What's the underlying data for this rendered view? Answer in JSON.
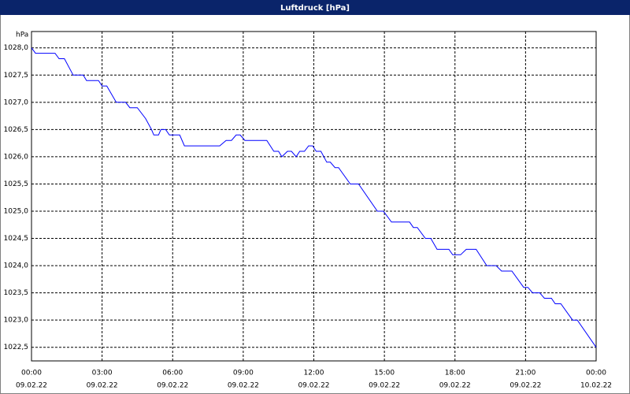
{
  "chart_data": {
    "type": "line",
    "title": "Luftdruck [hPa]",
    "y_label": "hPa",
    "x": [
      0,
      0.17,
      1.0,
      1.17,
      1.4,
      1.77,
      2.2,
      2.34,
      2.85,
      3.0,
      3.2,
      3.6,
      4.0,
      4.18,
      4.5,
      4.85,
      5.1,
      5.2,
      5.4,
      5.5,
      5.7,
      5.86,
      6.3,
      6.5,
      8.0,
      8.27,
      8.5,
      8.7,
      8.87,
      9.07,
      10.0,
      10.3,
      10.5,
      10.64,
      10.88,
      11.05,
      11.25,
      11.4,
      11.6,
      11.78,
      11.95,
      12.1,
      12.3,
      12.55,
      12.7,
      12.9,
      13.05,
      13.55,
      13.9,
      14.7,
      14.96,
      15.3,
      16.07,
      16.23,
      16.4,
      16.74,
      16.97,
      17.24,
      17.74,
      17.9,
      18.24,
      18.48,
      18.9,
      19.35,
      19.75,
      19.98,
      20.42,
      20.92,
      21.1,
      21.3,
      21.6,
      21.8,
      22.1,
      22.26,
      22.5,
      23.0,
      23.2,
      24.0
    ],
    "values": [
      1028.0,
      1027.9,
      1027.9,
      1027.8,
      1027.8,
      1027.5,
      1027.5,
      1027.4,
      1027.4,
      1027.3,
      1027.3,
      1027.0,
      1027.0,
      1026.9,
      1026.9,
      1026.7,
      1026.5,
      1026.4,
      1026.4,
      1026.5,
      1026.5,
      1026.4,
      1026.4,
      1026.2,
      1026.2,
      1026.3,
      1026.3,
      1026.4,
      1026.4,
      1026.3,
      1026.3,
      1026.1,
      1026.1,
      1026.0,
      1026.1,
      1026.1,
      1026.0,
      1026.1,
      1026.1,
      1026.2,
      1026.2,
      1026.1,
      1026.1,
      1025.9,
      1025.9,
      1025.8,
      1025.8,
      1025.5,
      1025.5,
      1025.0,
      1025.0,
      1024.8,
      1024.8,
      1024.7,
      1024.7,
      1024.5,
      1024.5,
      1024.3,
      1024.3,
      1024.2,
      1024.2,
      1024.3,
      1024.3,
      1024.0,
      1024.0,
      1023.9,
      1023.9,
      1023.6,
      1023.6,
      1023.5,
      1023.5,
      1023.4,
      1023.4,
      1023.3,
      1023.3,
      1023.0,
      1023.0,
      1022.5
    ],
    "color": "#0000ff",
    "xlim": [
      0,
      24
    ],
    "xticks": [
      {
        "value": 0,
        "label": "00:00",
        "date": "09.02.22"
      },
      {
        "value": 3,
        "label": "03:00",
        "date": "09.02.22"
      },
      {
        "value": 6,
        "label": "06:00",
        "date": "09.02.22"
      },
      {
        "value": 9,
        "label": "09:00",
        "date": "09.02.22"
      },
      {
        "value": 12,
        "label": "12:00",
        "date": "09.02.22"
      },
      {
        "value": 15,
        "label": "15:00",
        "date": "09.02.22"
      },
      {
        "value": 18,
        "label": "18:00",
        "date": "09.02.22"
      },
      {
        "value": 21,
        "label": "21:00",
        "date": "09.02.22"
      },
      {
        "value": 24,
        "label": "00:00",
        "date": "10.02.22"
      }
    ],
    "ylim": [
      1022.25,
      1028.3
    ],
    "yticks": [
      {
        "value": 1022.5,
        "label": "1022,5"
      },
      {
        "value": 1023,
        "label": "1023,0"
      },
      {
        "value": 1023.5,
        "label": "1023,5"
      },
      {
        "value": 1024,
        "label": "1024,0"
      },
      {
        "value": 1024.5,
        "label": "1024,5"
      },
      {
        "value": 1025,
        "label": "1025,0"
      },
      {
        "value": 1025.5,
        "label": "1025,5"
      },
      {
        "value": 1026,
        "label": "1026,0"
      },
      {
        "value": 1026.5,
        "label": "1026,5"
      },
      {
        "value": 1027,
        "label": "1027,0"
      },
      {
        "value": 1027.5,
        "label": "1027,5"
      },
      {
        "value": 1028,
        "label": "1028,0"
      }
    ],
    "grid": true
  }
}
